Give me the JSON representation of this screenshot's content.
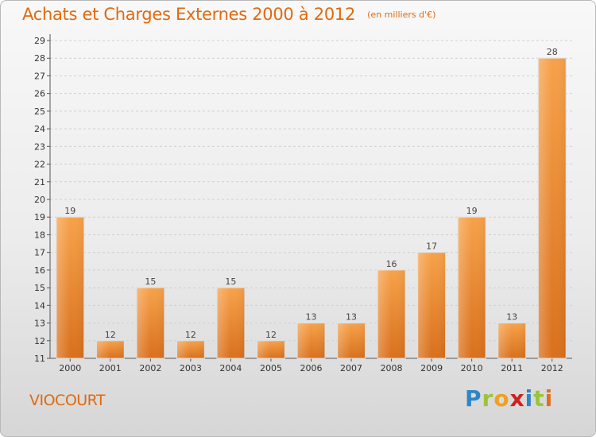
{
  "chart_data": {
    "type": "bar",
    "title": "Achats et Charges Externes 2000 à 2012",
    "subtitle": "(en milliers d'€)",
    "categories": [
      "2000",
      "2001",
      "2002",
      "2003",
      "2004",
      "2005",
      "2006",
      "2007",
      "2008",
      "2009",
      "2010",
      "2011",
      "2012"
    ],
    "values": [
      19,
      12,
      15,
      12,
      15,
      12,
      13,
      13,
      16,
      17,
      19,
      13,
      28
    ],
    "ylim": [
      11,
      29
    ],
    "yticks": [
      11,
      12,
      13,
      14,
      15,
      16,
      17,
      18,
      19,
      20,
      21,
      22,
      23,
      24,
      25,
      26,
      27,
      28,
      29
    ],
    "grid": true,
    "bar_color": "#f0922e"
  },
  "footer": {
    "place": "VIOCOURT",
    "logo": "Proxiti"
  }
}
